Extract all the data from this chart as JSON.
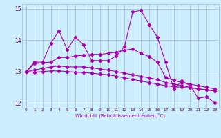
{
  "x": [
    0,
    1,
    2,
    3,
    4,
    5,
    6,
    7,
    8,
    9,
    10,
    11,
    12,
    13,
    14,
    15,
    16,
    17,
    18,
    19,
    20,
    21,
    22,
    23
  ],
  "line1": [
    13.0,
    13.3,
    13.3,
    13.9,
    14.3,
    13.7,
    14.1,
    13.85,
    13.35,
    13.35,
    13.35,
    13.5,
    13.8,
    14.9,
    14.95,
    14.5,
    14.1,
    13.3,
    12.45,
    12.7,
    12.55,
    12.15,
    12.2,
    12.0
  ],
  "line2": [
    13.0,
    13.25,
    13.28,
    13.3,
    13.45,
    13.45,
    13.5,
    13.52,
    13.55,
    13.55,
    13.58,
    13.62,
    13.68,
    13.72,
    13.58,
    13.48,
    13.3,
    12.82,
    12.72,
    12.65,
    12.6,
    12.55,
    12.5,
    12.45
  ],
  "line3": [
    13.0,
    13.05,
    13.1,
    13.15,
    13.18,
    13.15,
    13.15,
    13.15,
    13.12,
    13.08,
    13.05,
    13.0,
    12.95,
    12.9,
    12.85,
    12.8,
    12.75,
    12.65,
    12.6,
    12.55,
    12.5,
    12.45,
    12.42,
    12.38
  ],
  "line4": [
    13.0,
    12.98,
    13.0,
    13.02,
    13.02,
    13.0,
    12.98,
    12.97,
    12.95,
    12.92,
    12.9,
    12.85,
    12.8,
    12.75,
    12.7,
    12.65,
    12.6,
    12.55,
    12.52,
    12.5,
    12.48,
    12.45,
    12.42,
    12.38
  ],
  "color": "#aa00aa",
  "bg_color": "#cceeff",
  "grid_color": "#aabbcc",
  "ylim": [
    11.85,
    15.15
  ],
  "yticks": [
    12,
    13,
    14,
    15
  ],
  "xtick_labels": [
    "0",
    "1",
    "2",
    "3",
    "4",
    "5",
    "6",
    "7",
    "8",
    "9",
    "10",
    "11",
    "12",
    "13",
    "14",
    "15",
    "16",
    "17",
    "18",
    "19",
    "20",
    "21",
    "22",
    "23"
  ],
  "xlabel": "Windchill (Refroidissement éolien,°C)"
}
